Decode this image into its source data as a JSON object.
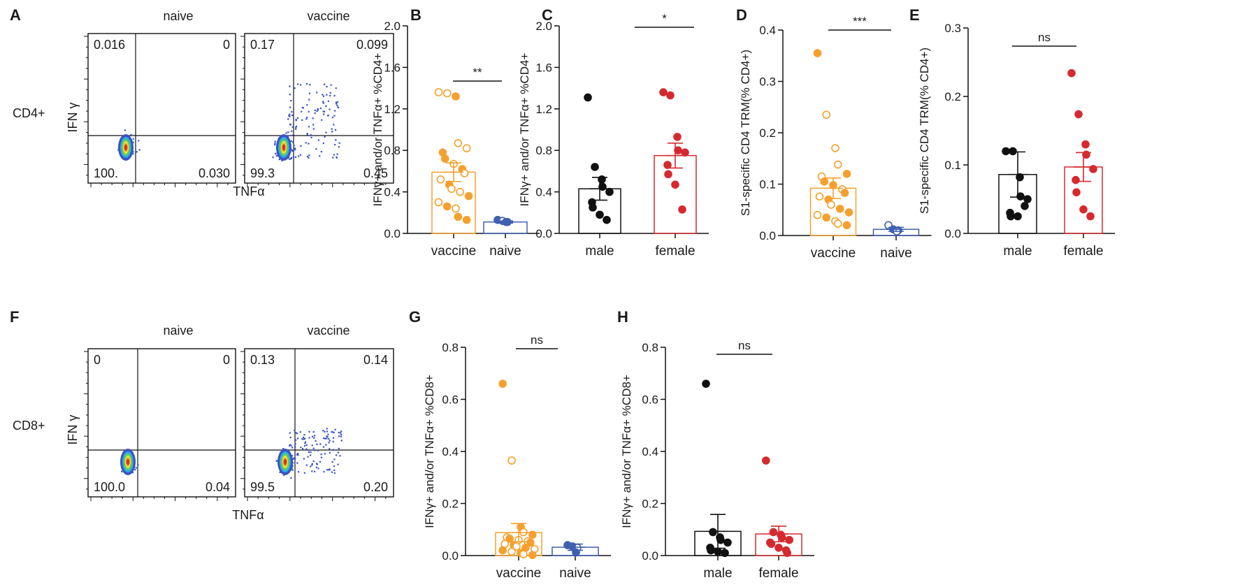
{
  "colors": {
    "vaccine": "#f5a02e",
    "naive": "#3f5fb0",
    "male": "#111111",
    "female": "#d42a2f",
    "flow_dot": "#3b52c6"
  },
  "chart_data": [
    {
      "panel": "A",
      "type": "flow-cytometry",
      "row_label": "CD4+",
      "xlabel": "TNFα",
      "ylabel": "IFN γ",
      "plots": [
        {
          "title": "naive",
          "q_ul": "0.016",
          "q_ur": "0",
          "q_ll": "100.",
          "q_lr": "0.030"
        },
        {
          "title": "vaccine",
          "q_ul": "0.17",
          "q_ur": "0.099",
          "q_ll": "99.3",
          "q_lr": "0.45"
        }
      ]
    },
    {
      "panel": "B",
      "type": "bar",
      "ylabel": "IFNγ+ and/or TNFα+ %CD4+",
      "ylim": [
        0,
        2.0
      ],
      "yticks": [
        "0.0",
        "0.4",
        "0.8",
        "1.2",
        "1.6",
        "2.0"
      ],
      "categories": [
        "vaccine",
        "naive"
      ],
      "means": [
        0.59,
        0.11
      ],
      "sem": [
        0.09,
        0.01
      ],
      "significance": "**",
      "points": [
        [
          1.36,
          1.35,
          1.32,
          0.87,
          0.82,
          0.78,
          0.72,
          0.67,
          0.62,
          0.58,
          0.52,
          0.47,
          0.43,
          0.4,
          0.36,
          0.3,
          0.26,
          0.24,
          0.16,
          0.13
        ],
        [
          0.13,
          0.12,
          0.11,
          0.11
        ]
      ],
      "open": [
        [
          true,
          true,
          false,
          true,
          true,
          false,
          false,
          true,
          false,
          true,
          true,
          false,
          true,
          true,
          false,
          true,
          false,
          true,
          false,
          false
        ],
        [
          false,
          true,
          false,
          false
        ]
      ]
    },
    {
      "panel": "C",
      "type": "bar",
      "ylabel": "IFNγ+ and/or TNFα+ %CD4+",
      "ylim": [
        0,
        2.0
      ],
      "yticks": [
        "0.0",
        "0.4",
        "0.8",
        "1.2",
        "1.6",
        "2.0"
      ],
      "categories": [
        "male",
        "female"
      ],
      "means": [
        0.43,
        0.75
      ],
      "sem": [
        0.11,
        0.12
      ],
      "significance": "*",
      "points": [
        [
          1.31,
          0.64,
          0.52,
          0.45,
          0.4,
          0.3,
          0.25,
          0.18,
          0.13
        ],
        [
          1.36,
          1.33,
          0.93,
          0.8,
          0.78,
          0.66,
          0.57,
          0.47,
          0.23
        ]
      ]
    },
    {
      "panel": "D",
      "type": "bar",
      "ylabel": "S1-specific CD4 TRM(% CD4+)",
      "ylim": [
        0,
        0.4
      ],
      "yticks": [
        "0.0",
        "0.1",
        "0.2",
        "0.3",
        "0.4"
      ],
      "categories": [
        "vaccine",
        "naive"
      ],
      "means": [
        0.092,
        0.012
      ],
      "sem": [
        0.02,
        0.004
      ],
      "significance": "***",
      "points": [
        [
          0.355,
          0.235,
          0.17,
          0.138,
          0.12,
          0.115,
          0.105,
          0.098,
          0.09,
          0.083,
          0.076,
          0.07,
          0.06,
          0.052,
          0.045,
          0.04,
          0.035,
          0.028,
          0.023,
          0.02
        ],
        [
          0.02,
          0.012,
          0.01,
          0.008
        ]
      ],
      "open": [
        [
          false,
          true,
          true,
          true,
          false,
          true,
          false,
          false,
          true,
          false,
          true,
          false,
          true,
          false,
          false,
          true,
          false,
          true,
          true,
          false
        ],
        [
          true,
          false,
          false,
          true
        ]
      ]
    },
    {
      "panel": "E",
      "type": "bar",
      "ylabel": "S1-specific CD4 TRM(% CD4+)",
      "ylim": [
        0,
        0.3
      ],
      "yticks": [
        "0.0",
        "0.1",
        "0.2",
        "0.3"
      ],
      "categories": [
        "male",
        "female"
      ],
      "means": [
        0.086,
        0.097
      ],
      "sem": [
        0.033,
        0.021
      ],
      "significance": "ns",
      "points": [
        [
          0.12,
          0.12,
          0.082,
          0.054,
          0.05,
          0.03,
          0.025,
          0.025,
          0.04
        ],
        [
          0.234,
          0.174,
          0.13,
          0.115,
          0.094,
          0.078,
          0.06,
          0.035,
          0.025
        ]
      ]
    },
    {
      "panel": "F",
      "type": "flow-cytometry",
      "row_label": "CD8+",
      "xlabel": "TNFα",
      "ylabel": "IFN γ",
      "plots": [
        {
          "title": "naive",
          "q_ul": "0",
          "q_ur": "0",
          "q_ll": "100.0",
          "q_lr": "0.04"
        },
        {
          "title": "vaccine",
          "q_ul": "0.13",
          "q_ur": "0.14",
          "q_ll": "99.5",
          "q_lr": "0.20"
        }
      ]
    },
    {
      "panel": "G",
      "type": "bar",
      "ylabel": "IFNγ+ and/or TNFα+ %CD8+",
      "ylim": [
        0,
        0.8
      ],
      "yticks": [
        "0.0",
        "0.2",
        "0.4",
        "0.6",
        "0.8"
      ],
      "categories": [
        "vaccine",
        "naive"
      ],
      "means": [
        0.088,
        0.032
      ],
      "sem": [
        0.035,
        0.012
      ],
      "significance": "ns",
      "points": [
        [
          0.66,
          0.365,
          0.11,
          0.09,
          0.08,
          0.07,
          0.065,
          0.06,
          0.055,
          0.05,
          0.045,
          0.04,
          0.035,
          0.03,
          0.025,
          0.02,
          0.015,
          0.01,
          0.005,
          0.002
        ],
        [
          0.04,
          0.035,
          0.03,
          0.012
        ]
      ],
      "open": [
        [
          false,
          true,
          false,
          true,
          false,
          true,
          false,
          true,
          true,
          false,
          true,
          false,
          true,
          false,
          true,
          false,
          true,
          false,
          true,
          false
        ],
        [
          false,
          false,
          true,
          false
        ]
      ]
    },
    {
      "panel": "H",
      "type": "bar",
      "ylabel": "IFNγ+ and/or TNFα+ %CD8+",
      "ylim": [
        0,
        0.8
      ],
      "yticks": [
        "0.0",
        "0.2",
        "0.4",
        "0.6",
        "0.8"
      ],
      "categories": [
        "male",
        "female"
      ],
      "means": [
        0.093,
        0.083
      ],
      "sem": [
        0.065,
        0.03
      ],
      "significance": "ns",
      "points": [
        [
          0.66,
          0.09,
          0.07,
          0.06,
          0.05,
          0.03,
          0.02,
          0.015,
          0.01
        ],
        [
          0.365,
          0.09,
          0.08,
          0.07,
          0.06,
          0.05,
          0.045,
          0.03,
          0.02,
          0.01
        ]
      ]
    }
  ]
}
